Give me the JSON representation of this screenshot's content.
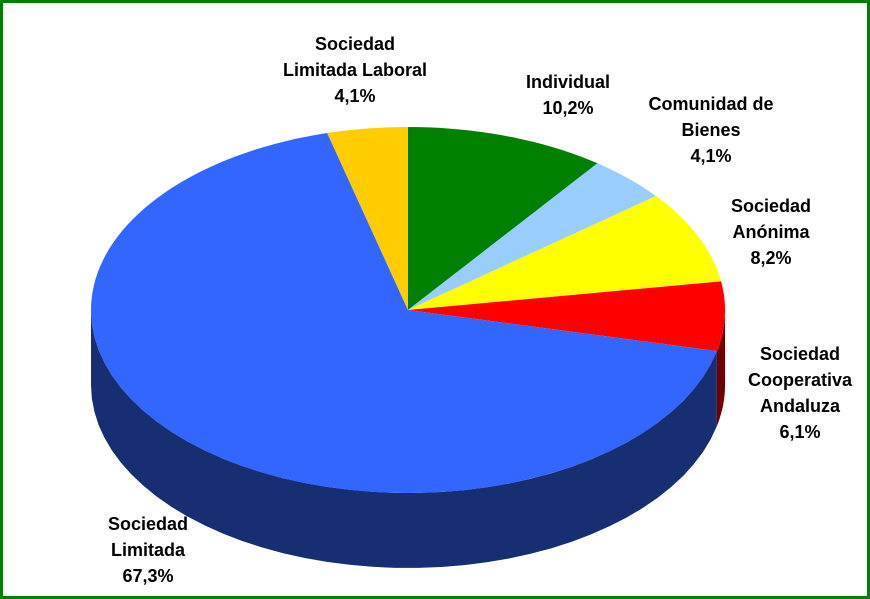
{
  "chart_data": {
    "type": "pie3d",
    "categories": [
      "Individual",
      "Comunidad de\nBienes",
      "Sociedad\nAnónima",
      "Sociedad\nCooperativa\nAndaluza",
      "Sociedad\nLimitada",
      "Sociedad\nLimitada Laboral"
    ],
    "values": [
      10.2,
      4.1,
      8.2,
      6.1,
      67.3,
      4.1
    ],
    "value_labels": [
      "10,2%",
      "4,1%",
      "8,2%",
      "6,1%",
      "67,3%",
      "4,1%"
    ],
    "colors": [
      "#008000",
      "#99ccff",
      "#ffff00",
      "#ff0000",
      "#3366ff",
      "#ffcc00"
    ]
  }
}
